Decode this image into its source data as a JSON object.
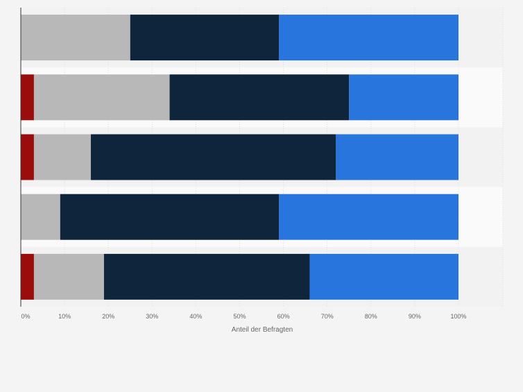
{
  "chart_data": {
    "type": "bar",
    "orientation": "horizontal",
    "stacked": true,
    "categories": [
      "",
      "",
      "",
      "",
      ""
    ],
    "xlabel": "Anteil der Befragten",
    "ylabel": "",
    "xlim": [
      0,
      100
    ],
    "x_ticks": [
      "0%",
      "10%",
      "20%",
      "30%",
      "40%",
      "50%",
      "60%",
      "70%",
      "80%",
      "90%",
      "100%"
    ],
    "grid": true,
    "legend": "none",
    "series": [
      {
        "color": "#9b0d0d",
        "values": [
          0,
          3,
          3,
          0,
          3
        ]
      },
      {
        "color": "#b8b8b8",
        "values": [
          25,
          31,
          13,
          9,
          16
        ]
      },
      {
        "color": "#0f253b",
        "values": [
          34,
          41,
          56,
          50,
          47
        ]
      },
      {
        "color": "#2876dd",
        "values": [
          41,
          25,
          28,
          41,
          34
        ]
      }
    ]
  }
}
